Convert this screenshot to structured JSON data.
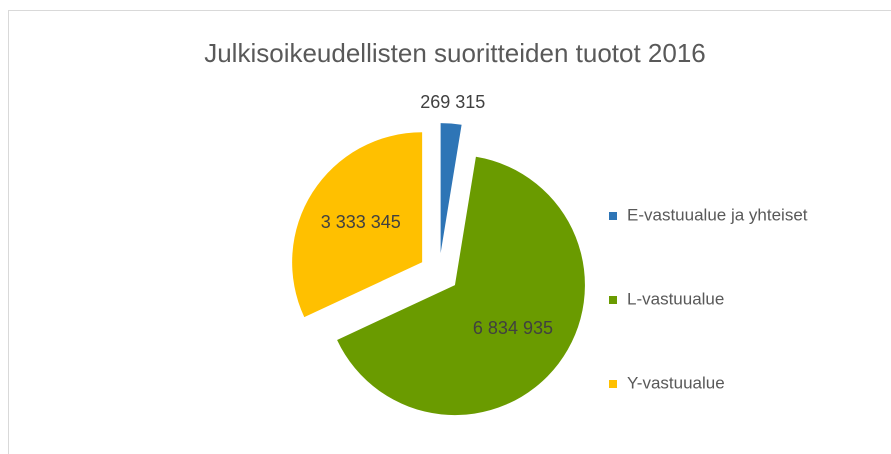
{
  "chart_data": {
    "type": "pie",
    "title": "Julkisoikeudellisten suoritteiden tuotot 2016",
    "categories": [
      "E-vastuualue ja yhteiset",
      "L-vastuualue",
      "Y-vastuualue"
    ],
    "values": [
      269315,
      6834935,
      3333345
    ],
    "value_labels": [
      "269 315",
      "6 834 935",
      "3 333 345"
    ],
    "colors": [
      "#2e75b6",
      "#6a9b00",
      "#ffc000"
    ],
    "legend": "right"
  }
}
